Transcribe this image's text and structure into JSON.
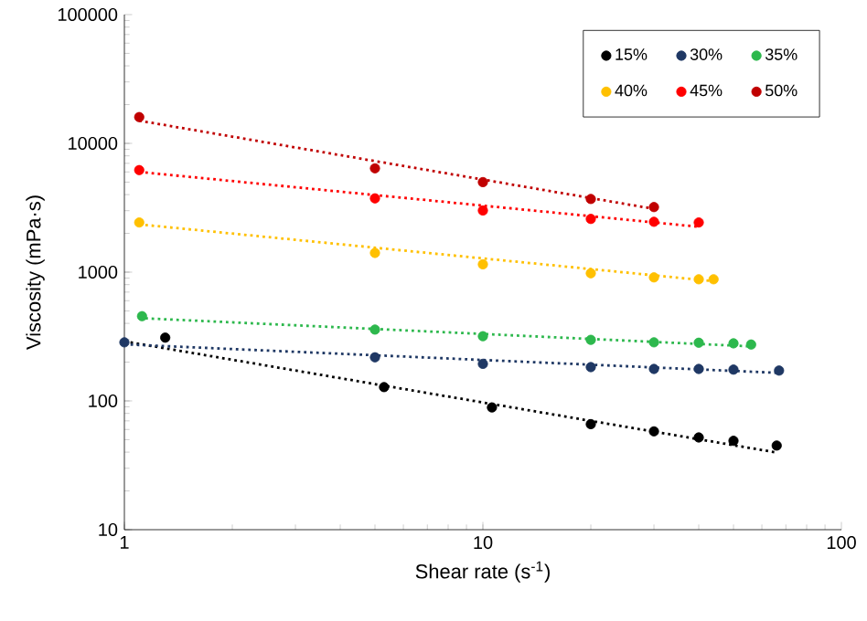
{
  "chart_data": {
    "type": "scatter",
    "xlabel": "Shear rate (s$^{-1}$)",
    "ylabel": "Viscosity (mPa·s)",
    "log": "xy",
    "xlim": [
      1,
      100
    ],
    "ylim": [
      10,
      100000
    ],
    "xticks": [
      1,
      10,
      100
    ],
    "yticks": [
      10,
      100,
      1000,
      10000,
      100000
    ],
    "grid": false,
    "legend": "top right",
    "marker": "circle",
    "series": [
      {
        "name": "15%",
        "color": "#000000",
        "x": [
          1.3,
          5.3,
          10.6,
          20,
          30,
          40,
          50,
          66
        ],
        "values": [
          310,
          128,
          89,
          66,
          58,
          52,
          49,
          45
        ]
      },
      {
        "name": "30%",
        "color": "#1f3864",
        "x": [
          1,
          5,
          10,
          20,
          30,
          40,
          50,
          67
        ],
        "values": [
          285,
          218,
          194,
          183,
          177,
          177,
          175,
          172
        ]
      },
      {
        "name": "35%",
        "color": "#2db84d",
        "x": [
          1.12,
          5,
          10,
          20,
          30,
          40,
          50,
          56
        ],
        "values": [
          455,
          358,
          318,
          298,
          285,
          283,
          280,
          274
        ]
      },
      {
        "name": "40%",
        "color": "#ffc000",
        "x": [
          1.1,
          5,
          10,
          20,
          30,
          40,
          44
        ],
        "values": [
          2430,
          1410,
          1150,
          980,
          910,
          880,
          880
        ]
      },
      {
        "name": "45%",
        "color": "#ff0000",
        "x": [
          1.1,
          5,
          10,
          20,
          30,
          40
        ],
        "values": [
          6200,
          3740,
          3010,
          2590,
          2460,
          2430
        ]
      },
      {
        "name": "50%",
        "color": "#c00000",
        "x": [
          1.1,
          5,
          10,
          20,
          30
        ],
        "values": [
          16000,
          6400,
          5000,
          3700,
          3200
        ]
      },
      {
        "color": "#000000",
        "type": "line",
        "line_style": "dotted",
        "marker": "none",
        "x": [
          1,
          65
        ],
        "values": [
          290,
          40
        ]
      },
      {
        "color": "#1f3864",
        "type": "line",
        "line_style": "dotted",
        "marker": "none",
        "x": [
          1,
          67
        ],
        "values": [
          275,
          165
        ]
      },
      {
        "color": "#2db84d",
        "type": "line",
        "line_style": "dotted",
        "marker": "none",
        "x": [
          1.1,
          56
        ],
        "values": [
          440,
          265
        ]
      },
      {
        "color": "#ffc000",
        "type": "line",
        "line_style": "dotted",
        "marker": "none",
        "x": [
          1.1,
          44
        ],
        "values": [
          2350,
          850
        ]
      },
      {
        "color": "#ff0000",
        "type": "line",
        "line_style": "dotted",
        "marker": "none",
        "x": [
          1.1,
          40
        ],
        "values": [
          6000,
          2250
        ]
      },
      {
        "color": "#c00000",
        "type": "line",
        "line_style": "dotted",
        "marker": "none",
        "x": [
          1.1,
          30
        ],
        "values": [
          15000,
          3100
        ]
      }
    ]
  }
}
